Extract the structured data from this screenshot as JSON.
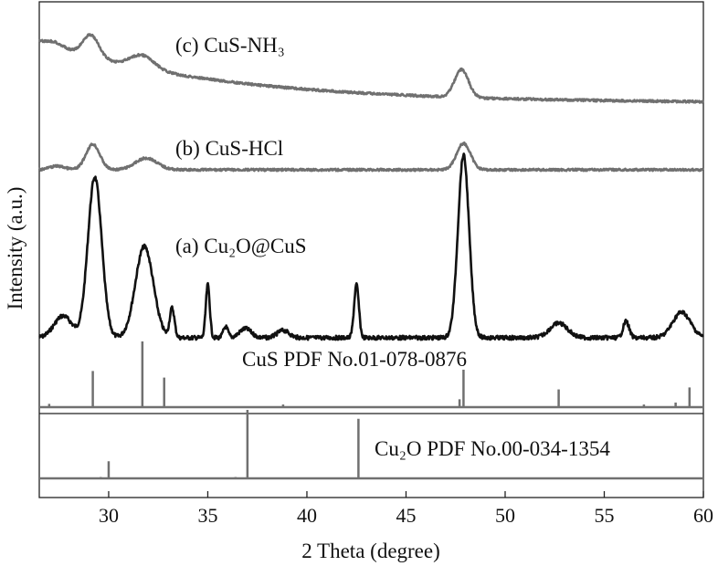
{
  "chart_data": {
    "type": "line",
    "xlabel": "2 Theta (degree)",
    "ylabel": "Intensity (a.u.)",
    "xlim": [
      26.5,
      60
    ],
    "xticks": [
      30,
      35,
      40,
      45,
      50,
      55,
      60
    ],
    "yticks_shown": false,
    "series": [
      {
        "name": "(a) Cu₂O@CuS",
        "color": "#111111",
        "baseline": 0.02,
        "peaks": [
          [
            27.7,
            0.12,
            0.45
          ],
          [
            29.3,
            0.88,
            0.35
          ],
          [
            31.8,
            0.5,
            0.45
          ],
          [
            33.2,
            0.16,
            0.12
          ],
          [
            35.0,
            0.29,
            0.1
          ],
          [
            35.9,
            0.06,
            0.12
          ],
          [
            36.9,
            0.05,
            0.3
          ],
          [
            38.8,
            0.04,
            0.3
          ],
          [
            42.5,
            0.29,
            0.12
          ],
          [
            47.9,
            1.0,
            0.28
          ],
          [
            52.7,
            0.08,
            0.45
          ],
          [
            56.1,
            0.09,
            0.15
          ],
          [
            58.9,
            0.14,
            0.45
          ]
        ]
      },
      {
        "name": "(b) CuS-HCl",
        "color": "#707070",
        "baseline": 0.0,
        "peaks": [
          [
            27.4,
            0.05,
            0.4
          ],
          [
            29.2,
            0.35,
            0.35
          ],
          [
            31.9,
            0.16,
            0.55
          ],
          [
            47.9,
            0.36,
            0.35
          ]
        ]
      },
      {
        "name": "(c) CuS-NH₃",
        "color": "#707070",
        "baseline": 0.0,
        "peaks": [
          [
            27.3,
            0.06,
            0.4
          ],
          [
            29.1,
            0.3,
            0.4
          ],
          [
            31.7,
            0.18,
            0.6
          ],
          [
            47.8,
            0.38,
            0.35
          ]
        ]
      }
    ],
    "references": [
      {
        "name": "CuS PDF No.01-078-0876",
        "color": "#707070",
        "lines": [
          [
            27.0,
            0.05
          ],
          [
            29.2,
            0.55
          ],
          [
            31.7,
            1.0
          ],
          [
            32.8,
            0.45
          ],
          [
            38.8,
            0.04
          ],
          [
            47.7,
            0.12
          ],
          [
            47.9,
            0.57
          ],
          [
            52.7,
            0.27
          ],
          [
            57.0,
            0.04
          ],
          [
            58.6,
            0.07
          ],
          [
            59.3,
            0.3
          ]
        ]
      },
      {
        "name": "Cu₂O PDF No.00-034-1354",
        "color": "#707070",
        "lines": [
          [
            29.6,
            0.02
          ],
          [
            30.0,
            0.25
          ],
          [
            36.4,
            0.02
          ],
          [
            37.0,
            1.0
          ],
          [
            42.6,
            0.87
          ]
        ]
      }
    ]
  }
}
